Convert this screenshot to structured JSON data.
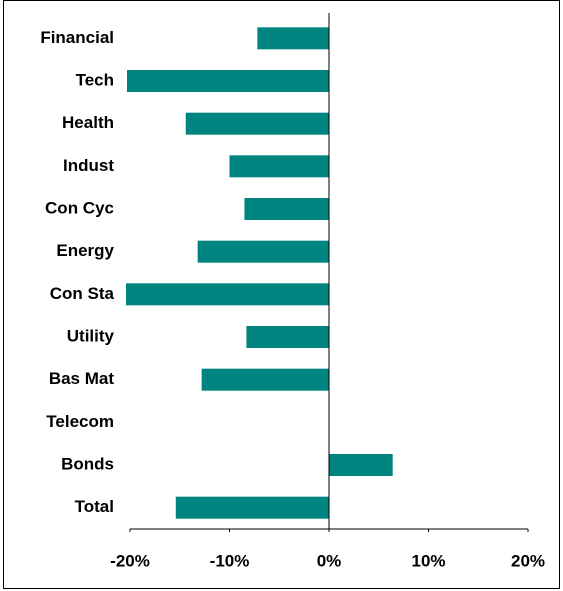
{
  "chart_data": {
    "type": "hbar",
    "categories": [
      "Financial",
      "Tech",
      "Health",
      "Indust",
      "Con Cyc",
      "Energy",
      "Con Sta",
      "Utility",
      "Bas Mat",
      "Telecom",
      "Bonds",
      "Total"
    ],
    "values": [
      -7.2,
      -20.3,
      -14.4,
      -10.0,
      -8.5,
      -13.2,
      -20.4,
      -8.3,
      -12.8,
      0,
      6.4,
      -15.4
    ],
    "color": "#00847f",
    "xlim": [
      -20,
      20
    ],
    "xticks": [
      {
        "value": -20,
        "label": "-20%"
      },
      {
        "value": -10,
        "label": "-10%"
      },
      {
        "value": 0,
        "label": "0%"
      },
      {
        "value": 10,
        "label": "10%"
      },
      {
        "value": 20,
        "label": "20%"
      }
    ],
    "grid": false
  }
}
